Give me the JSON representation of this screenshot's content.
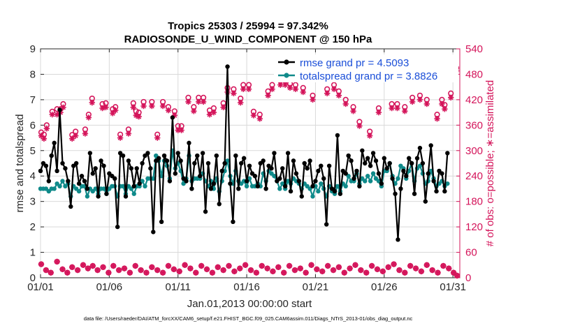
{
  "chart_data": {
    "type": "line",
    "title_line1": "Tropics 25303 / 25994 = 97.342%",
    "title_line2": "RADIOSONDE_U_WIND_COMPONENT @ 150 hPa",
    "xlabel": "Jan.01,2013 00:00:00 start",
    "ylabel_left": "rmse and totalspread",
    "ylabel_right": "# of obs: o=possible; ∗=assimilated",
    "footer": "data file: /Users/raeder/DAI/ATM_forcXX/CAM6_setup/f.e21.FHIST_BGC.f09_025.CAM6assim.011/Diags_NTrS_2013-01/obs_diag_output.nc",
    "x_tick_labels": [
      "01/01",
      "01/06",
      "01/11",
      "01/16",
      "01/21",
      "01/26",
      "01/31"
    ],
    "x_tick_values": [
      1,
      6,
      11,
      16,
      21,
      26,
      31
    ],
    "xlim": [
      1,
      31.5
    ],
    "ylim_left": [
      0,
      9
    ],
    "y_ticks_left": [
      "0",
      "1",
      "2",
      "3",
      "4",
      "5",
      "6",
      "7",
      "8",
      "9"
    ],
    "ylim_right": [
      0,
      540
    ],
    "y_ticks_right": [
      "0",
      "60",
      "120",
      "180",
      "240",
      "300",
      "360",
      "420",
      "480",
      "540"
    ],
    "colors": {
      "rmse": "#000000",
      "spread": "#0f8a8a",
      "obs": "#d4145a",
      "legend_text": "#1a4ed8"
    },
    "legend": [
      {
        "name": "rmse grand pr = 4.5093"
      },
      {
        "name": "totalspread grand pr = 3.8826"
      }
    ],
    "series": [
      {
        "name": "rmse",
        "values": [
          4.2,
          4.5,
          4.4,
          3.8,
          4.8,
          5.3,
          4.2,
          6.6,
          4.5,
          4.3,
          3.8,
          2.8,
          4.4,
          4.5,
          3.7,
          4.0,
          3.8,
          3.5,
          4.9,
          4.1,
          4.3,
          3.2,
          4.6,
          4.4,
          3.3,
          4.1,
          4.0,
          3.9,
          2.0,
          4.9,
          4.8,
          3.2,
          4.6,
          4.3,
          3.6,
          4.3,
          3.7,
          4.5,
          4.8,
          4.9,
          4.3,
          1.8,
          4.6,
          4.7,
          2.2,
          4.8,
          4.6,
          3.8,
          6.3,
          4.1,
          4.9,
          4.6,
          3.9,
          3.8,
          5.3,
          3.5,
          4.5,
          4.8,
          4.0,
          4.9,
          2.6,
          4.5,
          3.5,
          3.7,
          4.8,
          2.9,
          4.2,
          4.5,
          8.3,
          3.7,
          2.2,
          4.8,
          3.5,
          4.5,
          4.7,
          3.8,
          4.4,
          4.1,
          4.0,
          3.6,
          4.5,
          4.6,
          3.5,
          4.4,
          4.3,
          4.9,
          3.8,
          3.9,
          4.3,
          3.6,
          4.9,
          3.4,
          4.6,
          4.1,
          3.8,
          3.2,
          4.5,
          4.3,
          4.6,
          3.6,
          3.8,
          4.2,
          4.4,
          3.9,
          2.1,
          4.4,
          3.5,
          3.4,
          5.6,
          3.3,
          4.2,
          4.1,
          4.8,
          4.6,
          3.9,
          4.2,
          3.6,
          5.0,
          4.5,
          4.7,
          4.4,
          4.9,
          4.6,
          4.1,
          3.7,
          4.7,
          4.3,
          4.5,
          3.9,
          3.3,
          1.5,
          3.5,
          4.2,
          4.0,
          4.7,
          4.5,
          3.3,
          4.7,
          5.1,
          4.5,
          3.0,
          4.1,
          5.2,
          3.8,
          3.4,
          4.2,
          4.1,
          3.4,
          4.9
        ],
        "x_start": 1,
        "x_step": 0.2
      },
      {
        "name": "totalspread",
        "values": [
          3.5,
          3.5,
          3.5,
          3.4,
          3.5,
          3.5,
          3.7,
          3.6,
          3.8,
          3.6,
          3.7,
          3.2,
          3.6,
          3.5,
          3.4,
          3.6,
          3.6,
          3.2,
          3.5,
          3.4,
          3.5,
          3.3,
          3.5,
          3.5,
          3.3,
          3.5,
          3.6,
          3.6,
          3.2,
          3.6,
          3.6,
          3.3,
          3.6,
          3.5,
          3.3,
          3.6,
          3.6,
          3.8,
          3.6,
          3.9,
          3.9,
          3.9,
          4.8,
          4.6,
          4.0,
          4.6,
          4.4,
          3.9,
          5.0,
          4.3,
          4.5,
          4.2,
          3.7,
          3.9,
          4.8,
          3.8,
          3.9,
          3.9,
          3.9,
          4.1,
          3.8,
          3.6,
          3.8,
          3.5,
          3.9,
          3.4,
          3.8,
          4.2,
          4.6,
          4.0,
          3.7,
          4.2,
          3.8,
          3.7,
          3.8,
          3.6,
          3.9,
          3.6,
          3.6,
          3.7,
          3.6,
          4.1,
          3.8,
          4.2,
          4.1,
          4.0,
          3.8,
          3.5,
          3.7,
          3.5,
          3.8,
          3.7,
          3.9,
          3.8,
          3.7,
          3.5,
          3.7,
          3.6,
          3.5,
          3.2,
          3.6,
          3.4,
          3.7,
          3.5,
          3.2,
          3.6,
          3.4,
          3.3,
          3.6,
          3.4,
          3.7,
          3.6,
          4.0,
          3.8,
          3.8,
          4.1,
          3.7,
          3.9,
          3.8,
          4.0,
          3.8,
          4.1,
          3.9,
          3.8,
          3.6,
          4.2,
          4.2,
          4.5,
          4.0,
          3.7,
          3.9,
          4.4,
          4.3,
          3.9,
          4.2,
          4.5,
          3.8,
          4.3,
          4.4,
          4.1,
          3.7,
          3.8,
          4.2,
          3.9,
          3.6,
          3.7,
          3.8,
          3.6,
          3.7
        ],
        "x_start": 1,
        "x_step": 0.2
      },
      {
        "name": "obs_possible",
        "points": [
          [
            1.05,
            343
          ],
          [
            1.25,
            338
          ],
          [
            1.45,
            360
          ],
          [
            1.85,
            392
          ],
          [
            2.2,
            398
          ],
          [
            2.45,
            398
          ],
          [
            2.65,
            410
          ],
          [
            3.3,
            337
          ],
          [
            3.55,
            345
          ],
          [
            4.25,
            350
          ],
          [
            4.5,
            385
          ],
          [
            4.75,
            423
          ],
          [
            5.5,
            410
          ],
          [
            5.75,
            412
          ],
          [
            6.25,
            398
          ],
          [
            6.45,
            403
          ],
          [
            6.8,
            338
          ],
          [
            7.4,
            350
          ],
          [
            7.75,
            412
          ],
          [
            7.95,
            393
          ],
          [
            8.15,
            390
          ],
          [
            8.5,
            415
          ],
          [
            9.1,
            415
          ],
          [
            9.5,
            338
          ],
          [
            9.9,
            415
          ],
          [
            10.3,
            403
          ],
          [
            10.75,
            393
          ],
          [
            11.0,
            358
          ],
          [
            11.25,
            358
          ],
          [
            11.75,
            425
          ],
          [
            12.15,
            403
          ],
          [
            12.5,
            425
          ],
          [
            12.85,
            425
          ],
          [
            13.3,
            395
          ],
          [
            13.6,
            400
          ],
          [
            14.3,
            412
          ],
          [
            14.6,
            448
          ],
          [
            15.05,
            445
          ],
          [
            15.55,
            423
          ],
          [
            15.75,
            455
          ],
          [
            16.15,
            455
          ],
          [
            16.5,
            392
          ],
          [
            16.95,
            385
          ],
          [
            17.55,
            440
          ],
          [
            17.85,
            455
          ],
          [
            18.45,
            465
          ],
          [
            18.8,
            465
          ],
          [
            19.15,
            458
          ],
          [
            19.55,
            455
          ],
          [
            20.1,
            448
          ],
          [
            20.8,
            430
          ],
          [
            21.35,
            478
          ],
          [
            21.85,
            445
          ],
          [
            22.35,
            455
          ],
          [
            22.7,
            440
          ],
          [
            23.2,
            420
          ],
          [
            23.75,
            403
          ],
          [
            24.2,
            368
          ],
          [
            24.95,
            345
          ],
          [
            25.6,
            400
          ],
          [
            26.55,
            410
          ],
          [
            26.95,
            410
          ],
          [
            27.5,
            403
          ],
          [
            28.05,
            425
          ],
          [
            28.6,
            430
          ],
          [
            29.1,
            420
          ],
          [
            29.85,
            385
          ],
          [
            30.2,
            420
          ],
          [
            30.4,
            408
          ],
          [
            30.85,
            435
          ],
          [
            31.25,
            495
          ]
        ]
      },
      {
        "name": "obs_assimilated",
        "points": [
          [
            1.05,
            335
          ],
          [
            1.25,
            328
          ],
          [
            1.45,
            352
          ],
          [
            1.85,
            385
          ],
          [
            2.2,
            385
          ],
          [
            2.45,
            390
          ],
          [
            2.65,
            402
          ],
          [
            3.3,
            328
          ],
          [
            3.55,
            335
          ],
          [
            4.25,
            340
          ],
          [
            4.5,
            378
          ],
          [
            4.75,
            413
          ],
          [
            5.5,
            400
          ],
          [
            5.75,
            402
          ],
          [
            6.25,
            388
          ],
          [
            6.45,
            395
          ],
          [
            6.8,
            330
          ],
          [
            7.4,
            340
          ],
          [
            7.75,
            402
          ],
          [
            7.95,
            383
          ],
          [
            8.15,
            380
          ],
          [
            8.5,
            405
          ],
          [
            9.1,
            405
          ],
          [
            9.5,
            330
          ],
          [
            9.9,
            405
          ],
          [
            10.3,
            395
          ],
          [
            10.75,
            383
          ],
          [
            11.0,
            348
          ],
          [
            11.25,
            348
          ],
          [
            11.75,
            415
          ],
          [
            12.15,
            393
          ],
          [
            12.5,
            415
          ],
          [
            12.85,
            415
          ],
          [
            13.3,
            385
          ],
          [
            13.6,
            390
          ],
          [
            14.3,
            402
          ],
          [
            14.6,
            438
          ],
          [
            15.05,
            435
          ],
          [
            15.55,
            413
          ],
          [
            15.75,
            445
          ],
          [
            16.15,
            445
          ],
          [
            16.5,
            383
          ],
          [
            16.95,
            375
          ],
          [
            17.55,
            430
          ],
          [
            17.85,
            445
          ],
          [
            18.45,
            455
          ],
          [
            18.8,
            455
          ],
          [
            19.15,
            448
          ],
          [
            19.55,
            445
          ],
          [
            20.1,
            438
          ],
          [
            20.8,
            420
          ],
          [
            21.35,
            470
          ],
          [
            21.85,
            435
          ],
          [
            22.35,
            445
          ],
          [
            22.7,
            430
          ],
          [
            23.2,
            410
          ],
          [
            23.75,
            393
          ],
          [
            24.2,
            358
          ],
          [
            24.95,
            335
          ],
          [
            25.6,
            390
          ],
          [
            26.55,
            400
          ],
          [
            26.95,
            400
          ],
          [
            27.5,
            393
          ],
          [
            28.05,
            415
          ],
          [
            28.6,
            420
          ],
          [
            29.1,
            410
          ],
          [
            29.85,
            375
          ],
          [
            30.2,
            410
          ],
          [
            30.4,
            398
          ],
          [
            30.85,
            425
          ],
          [
            31.25,
            488
          ]
        ]
      },
      {
        "name": "obs_low_possible",
        "points": [
          [
            1.05,
            32
          ],
          [
            1.4,
            18
          ],
          [
            1.75,
            12
          ],
          [
            2.2,
            38
          ],
          [
            2.6,
            20
          ],
          [
            2.95,
            12
          ],
          [
            3.3,
            25
          ],
          [
            3.7,
            18
          ],
          [
            4.1,
            30
          ],
          [
            4.45,
            22
          ],
          [
            4.8,
            28
          ],
          [
            5.15,
            18
          ],
          [
            5.55,
            25
          ],
          [
            5.95,
            12
          ],
          [
            6.3,
            28
          ],
          [
            6.7,
            18
          ],
          [
            7.1,
            22
          ],
          [
            7.5,
            12
          ],
          [
            7.9,
            28
          ],
          [
            8.3,
            18
          ],
          [
            8.7,
            12
          ],
          [
            9.1,
            25
          ],
          [
            9.5,
            18
          ],
          [
            9.9,
            12
          ],
          [
            10.3,
            28
          ],
          [
            10.7,
            20
          ],
          [
            11.1,
            15
          ],
          [
            11.5,
            30
          ],
          [
            11.9,
            22
          ],
          [
            12.3,
            12
          ],
          [
            12.7,
            28
          ],
          [
            13.1,
            20
          ],
          [
            13.5,
            12
          ],
          [
            13.9,
            25
          ],
          [
            14.3,
            18
          ],
          [
            14.7,
            28
          ],
          [
            15.1,
            15
          ],
          [
            15.5,
            22
          ],
          [
            15.9,
            30
          ],
          [
            16.3,
            18
          ],
          [
            16.7,
            12
          ],
          [
            17.1,
            28
          ],
          [
            17.5,
            22
          ],
          [
            17.9,
            15
          ],
          [
            18.3,
            25
          ],
          [
            18.7,
            12
          ],
          [
            19.1,
            28
          ],
          [
            19.5,
            18
          ],
          [
            19.9,
            22
          ],
          [
            20.3,
            12
          ],
          [
            20.7,
            30
          ],
          [
            21.1,
            20
          ],
          [
            21.5,
            15
          ],
          [
            21.9,
            28
          ],
          [
            22.3,
            18
          ],
          [
            22.7,
            25
          ],
          [
            23.1,
            12
          ],
          [
            23.5,
            22
          ],
          [
            23.9,
            30
          ],
          [
            24.3,
            18
          ],
          [
            24.7,
            12
          ],
          [
            25.1,
            28
          ],
          [
            25.5,
            20
          ],
          [
            25.9,
            15
          ],
          [
            26.3,
            25
          ],
          [
            26.7,
            32
          ],
          [
            27.1,
            18
          ],
          [
            27.5,
            12
          ],
          [
            27.9,
            28
          ],
          [
            28.3,
            22
          ],
          [
            28.7,
            15
          ],
          [
            29.1,
            30
          ],
          [
            29.5,
            18
          ],
          [
            29.9,
            12
          ],
          [
            30.3,
            28
          ],
          [
            30.7,
            22
          ],
          [
            31.05,
            12
          ],
          [
            31.3,
            5
          ]
        ]
      }
    ]
  }
}
